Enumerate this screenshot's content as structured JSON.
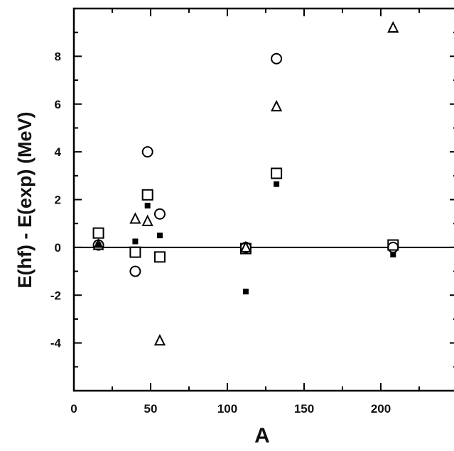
{
  "chart_data": {
    "type": "scatter",
    "title": "",
    "xlabel": "A",
    "ylabel": "E(hf) - E(exp) (MeV)",
    "xlim": [
      0,
      250
    ],
    "ylim": [
      -6,
      10
    ],
    "x_ticks": [
      0,
      50,
      100,
      150,
      200
    ],
    "y_ticks": [
      -4,
      -2,
      0,
      2,
      4,
      6,
      8
    ],
    "grid": false,
    "legend": "none",
    "reference_line_y": 0,
    "series": [
      {
        "marker": "circle",
        "points": [
          [
            16,
            0.1
          ],
          [
            40,
            -1.0
          ],
          [
            48,
            4.0
          ],
          [
            56,
            1.4
          ],
          [
            112,
            0.0
          ],
          [
            132,
            7.9
          ],
          [
            208,
            0.0
          ]
        ]
      },
      {
        "marker": "triangle",
        "points": [
          [
            16,
            0.1
          ],
          [
            40,
            1.2
          ],
          [
            48,
            1.1
          ],
          [
            56,
            -3.9
          ],
          [
            112,
            0.0
          ],
          [
            132,
            5.9
          ],
          [
            208,
            9.2
          ]
        ]
      },
      {
        "marker": "square",
        "points": [
          [
            16,
            0.6
          ],
          [
            40,
            -0.2
          ],
          [
            48,
            2.2
          ],
          [
            56,
            -0.4
          ],
          [
            112,
            -0.05
          ],
          [
            132,
            3.1
          ],
          [
            208,
            0.1
          ]
        ]
      },
      {
        "marker": "filled-square",
        "points": [
          [
            16,
            0.1
          ],
          [
            40,
            0.25
          ],
          [
            48,
            1.75
          ],
          [
            56,
            0.5
          ],
          [
            112,
            -1.85
          ],
          [
            132,
            2.65
          ],
          [
            208,
            -0.3
          ]
        ]
      }
    ]
  }
}
